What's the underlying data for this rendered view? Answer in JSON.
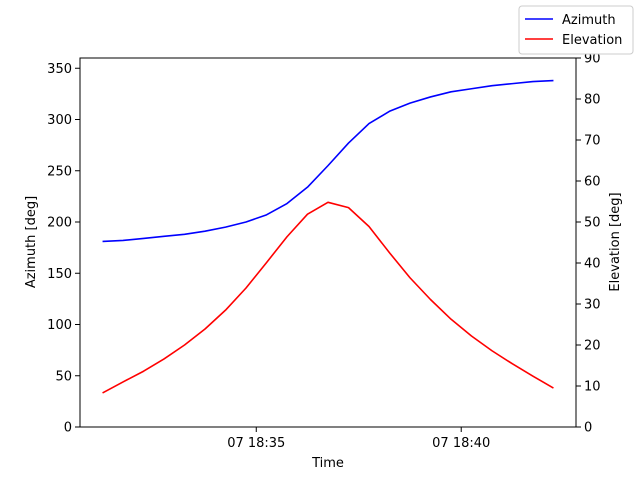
{
  "chart_data": {
    "type": "line",
    "title": "",
    "xlabel": "Time",
    "ylabel_left": "Azimuth [deg]",
    "ylabel_right": "Elevation [deg]",
    "x_ticks": [
      {
        "t": 35,
        "label": "07 18:35"
      },
      {
        "t": 40,
        "label": "07 18:40"
      }
    ],
    "xlim": [
      30.7,
      42.8
    ],
    "ylim_left": [
      0,
      360
    ],
    "ylim_right": [
      0,
      90
    ],
    "yticks_left": [
      0,
      50,
      100,
      150,
      200,
      250,
      300,
      350
    ],
    "yticks_right": [
      0,
      10,
      20,
      30,
      40,
      50,
      60,
      70,
      80,
      90
    ],
    "legend_position": "top-right",
    "grid": false,
    "x": [
      31.25,
      31.75,
      32.25,
      32.75,
      33.25,
      33.75,
      34.25,
      34.75,
      35.25,
      35.75,
      36.25,
      36.75,
      37.25,
      37.75,
      38.25,
      38.75,
      39.25,
      39.75,
      40.25,
      40.75,
      41.25,
      41.75,
      42.25
    ],
    "series": [
      {
        "name": "Azimuth",
        "axis": "left",
        "color": "#0000ff",
        "values": [
          181,
          182,
          184,
          186,
          188,
          191,
          195,
          200,
          207,
          218,
          234,
          255,
          277,
          296,
          308,
          316,
          322,
          327,
          330,
          333,
          335,
          337,
          338
        ]
      },
      {
        "name": "Elevation",
        "axis": "right",
        "color": "#ff0000",
        "values": [
          8.3,
          11,
          13.6,
          16.6,
          20,
          23.9,
          28.5,
          33.9,
          40.1,
          46.4,
          51.9,
          54.8,
          53.5,
          48.9,
          42.5,
          36.4,
          31.1,
          26.3,
          22.2,
          18.6,
          15.4,
          12.4,
          9.5
        ]
      }
    ]
  }
}
